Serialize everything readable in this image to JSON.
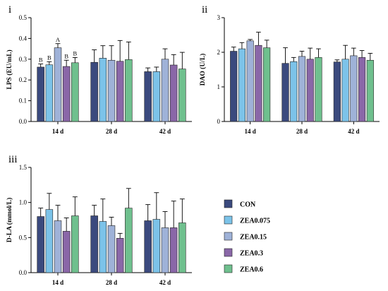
{
  "colors": {
    "CON": "#3b4a7e",
    "ZEA0.075": "#7cc3e9",
    "ZEA0.15": "#9fb2d8",
    "ZEA0.3": "#8a67a8",
    "ZEA0.6": "#6fc08e"
  },
  "legend": {
    "items": [
      "CON",
      "ZEA0.075",
      "ZEA0.15",
      "ZEA0.3",
      "ZEA0.6"
    ]
  },
  "chart_data": [
    {
      "type": "bar",
      "panel_label": "i",
      "ylabel": "LPS (EU/mL)",
      "ylim": [
        0,
        0.5
      ],
      "yticks": [
        "0.0",
        "0.1",
        "0.2",
        "0.3",
        "0.4",
        "0.5"
      ],
      "categories": [
        "14 d",
        "28 d",
        "42 d"
      ],
      "series": [
        {
          "name": "CON",
          "values": [
            0.262,
            0.285,
            0.24
          ],
          "errors": [
            0.015,
            0.06,
            0.018
          ]
        },
        {
          "name": "ZEA0.075",
          "values": [
            0.273,
            0.305,
            0.24
          ],
          "errors": [
            0.015,
            0.06,
            0.022
          ]
        },
        {
          "name": "ZEA0.15",
          "values": [
            0.355,
            0.295,
            0.3
          ],
          "errors": [
            0.02,
            0.07,
            0.05
          ]
        },
        {
          "name": "ZEA0.3",
          "values": [
            0.265,
            0.29,
            0.272
          ],
          "errors": [
            0.03,
            0.1,
            0.05
          ]
        },
        {
          "name": "ZEA0.6",
          "values": [
            0.283,
            0.298,
            0.253
          ],
          "errors": [
            0.025,
            0.085,
            0.08
          ]
        }
      ],
      "annotations": [
        {
          "category": 0,
          "series": 0,
          "text": "B"
        },
        {
          "category": 0,
          "series": 1,
          "text": "B"
        },
        {
          "category": 0,
          "series": 2,
          "text": "A"
        },
        {
          "category": 0,
          "series": 3,
          "text": "B"
        },
        {
          "category": 0,
          "series": 4,
          "text": "B"
        }
      ]
    },
    {
      "type": "bar",
      "panel_label": "ii",
      "ylabel": "DAO (U/L)",
      "ylim": [
        0,
        3
      ],
      "yticks": [
        "0",
        "1",
        "2",
        "3"
      ],
      "categories": [
        "14 d",
        "28 d",
        "42 d"
      ],
      "series": [
        {
          "name": "CON",
          "values": [
            2.03,
            1.68,
            1.72
          ],
          "errors": [
            0.12,
            0.45,
            0.06
          ]
        },
        {
          "name": "ZEA0.075",
          "values": [
            2.1,
            1.73,
            1.8
          ],
          "errors": [
            0.18,
            0.12,
            0.4
          ]
        },
        {
          "name": "ZEA0.15",
          "values": [
            2.33,
            1.88,
            1.9
          ],
          "errors": [
            0.04,
            0.15,
            0.22
          ]
        },
        {
          "name": "ZEA0.3",
          "values": [
            2.2,
            1.8,
            1.85
          ],
          "errors": [
            0.38,
            0.32,
            0.2
          ]
        },
        {
          "name": "ZEA0.6",
          "values": [
            2.13,
            1.85,
            1.77
          ],
          "errors": [
            0.22,
            0.25,
            0.2
          ]
        }
      ],
      "annotations": []
    },
    {
      "type": "bar",
      "panel_label": "iii",
      "ylabel": "D-LA (mmol/L)",
      "ylim": [
        0,
        1.5
      ],
      "yticks": [
        "0.0",
        "0.5",
        "1.0",
        "1.5"
      ],
      "categories": [
        "14 d",
        "28 d",
        "42 d"
      ],
      "series": [
        {
          "name": "CON",
          "values": [
            0.8,
            0.81,
            0.74
          ],
          "errors": [
            0.12,
            0.15,
            0.23
          ]
        },
        {
          "name": "ZEA0.075",
          "values": [
            0.9,
            0.73,
            0.76
          ],
          "errors": [
            0.23,
            0.32,
            0.38
          ]
        },
        {
          "name": "ZEA0.15",
          "values": [
            0.74,
            0.67,
            0.64
          ],
          "errors": [
            0.22,
            0.12,
            0.23
          ]
        },
        {
          "name": "ZEA0.3",
          "values": [
            0.59,
            0.49,
            0.64
          ],
          "errors": [
            0.19,
            0.07,
            0.38
          ]
        },
        {
          "name": "ZEA0.6",
          "values": [
            0.81,
            0.92,
            0.71
          ],
          "errors": [
            0.27,
            0.28,
            0.34
          ]
        }
      ],
      "annotations": []
    }
  ]
}
